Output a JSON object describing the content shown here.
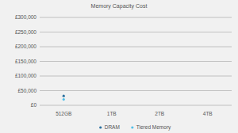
{
  "chart_data": {
    "type": "line",
    "title": "Memory Capacity Cost",
    "categories": [
      "512GB",
      "1TB",
      "2TB",
      "4TB"
    ],
    "series": [
      {
        "name": "DRAM",
        "color": "#2a6f9e",
        "marker": "circle",
        "values": [
          32000,
          null,
          null,
          null
        ]
      },
      {
        "name": "Tiered Memory",
        "color": "#52c0e8",
        "marker": "circle",
        "values": [
          20000,
          null,
          null,
          null
        ]
      }
    ],
    "ylim": [
      0,
      300000
    ],
    "yticks": [
      {
        "value": 0,
        "label": "£0"
      },
      {
        "value": 50000,
        "label": "£50,000"
      },
      {
        "value": 100000,
        "label": "£100,000"
      },
      {
        "value": 150000,
        "label": "£150,000"
      },
      {
        "value": 200000,
        "label": "£200,000"
      },
      {
        "value": 250000,
        "label": "£250,000"
      },
      {
        "value": 300000,
        "label": "£300,000"
      }
    ],
    "grid": true,
    "legend": "bottom"
  }
}
